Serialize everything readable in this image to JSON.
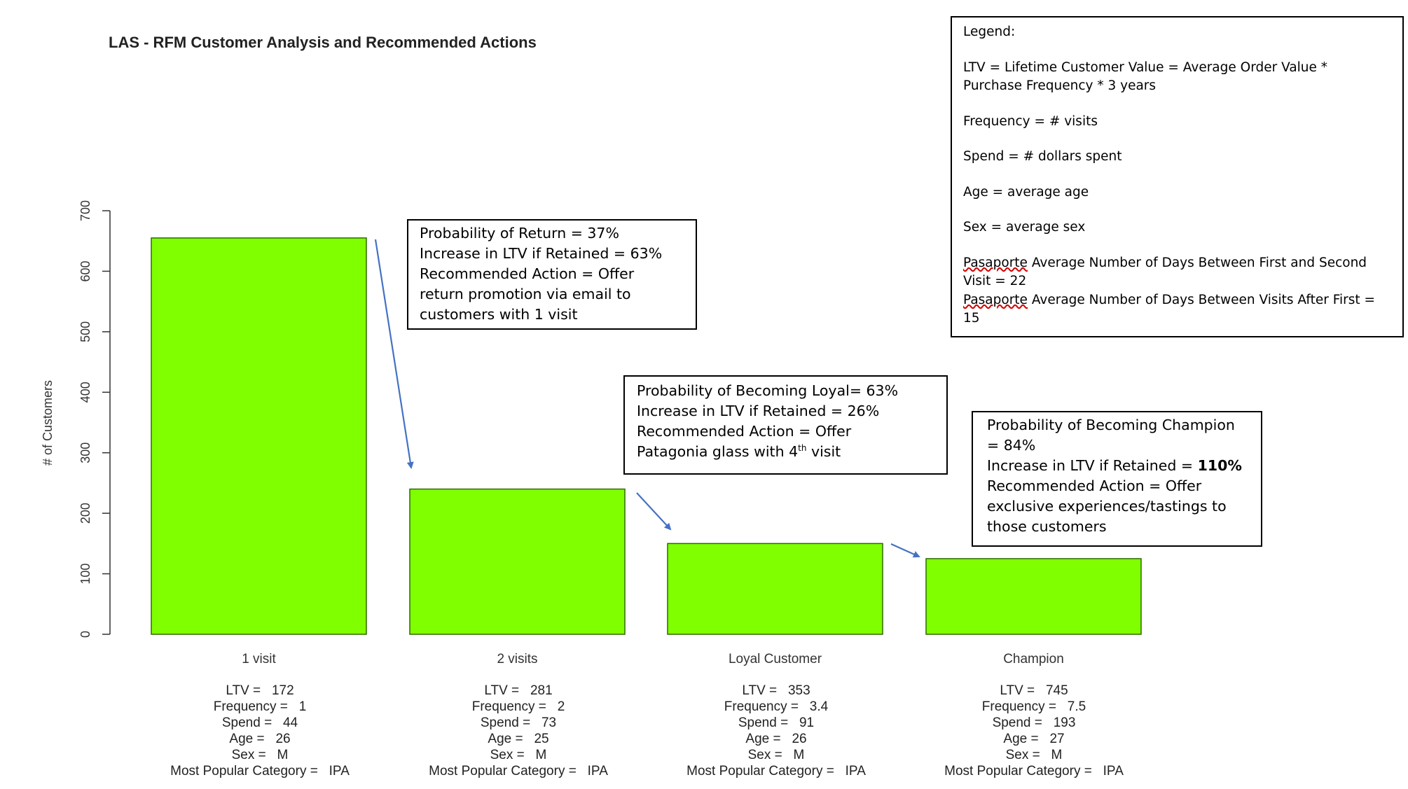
{
  "chart_data": {
    "type": "bar",
    "title": "LAS - RFM Customer Analysis and Recommended Actions",
    "ylabel": "# of Customers",
    "ylim": [
      0,
      700
    ],
    "yticks": [
      0,
      100,
      200,
      300,
      400,
      500,
      600,
      700
    ],
    "categories": [
      "1 visit",
      "2 visits",
      "Loyal Customer",
      "Champion"
    ],
    "values": [
      655,
      240,
      150,
      125
    ],
    "bar_color": "#80FF00",
    "bar_stroke": "#2d6a00",
    "arrow_color": "#4472C4",
    "grid": false,
    "category_stats": [
      [
        "LTV =   172",
        "Frequency =   1",
        "Spend =   44",
        "Age =   26",
        "Sex =   M",
        "Most Popular Category =   IPA"
      ],
      [
        "LTV =   281",
        "Frequency =   2",
        "Spend =   73",
        "Age =   25",
        "Sex =   M",
        "Most Popular Category =   IPA"
      ],
      [
        "LTV =   353",
        "Frequency =   3.4",
        "Spend =   91",
        "Age =   26",
        "Sex =   M",
        "Most Popular Category =   IPA"
      ],
      [
        "LTV =   745",
        "Frequency =   7.5",
        "Spend =   193",
        "Age =   27",
        "Sex =   M",
        "Most Popular Category =   IPA"
      ]
    ]
  },
  "annotations": {
    "return_box": [
      "Probability of Return = 37%",
      "Increase in LTV if Retained = 63%",
      "Recommended Action = Offer",
      "return promotion via email to",
      "customers with 1 visit"
    ],
    "loyal_box": {
      "line1": "Probability of Becoming Loyal= 63%",
      "line2": "Increase in LTV if Retained = 26%",
      "line3": "Recommended Action = Offer",
      "line4_pre": "Patagonia glass with 4",
      "line4_sup": "th",
      "line4_post": " visit"
    },
    "champion_box": {
      "line1": "Probability of Becoming Champion",
      "line2": "= 84%",
      "line3_pre": "Increase in LTV if Retained = ",
      "line3_bold": "110%",
      "line4": "Recommended Action = Offer",
      "line5": "exclusive experiences/tastings to",
      "line6": "those customers"
    }
  },
  "legend": {
    "heading": "Legend:",
    "ltv_line1": "LTV = Lifetime Customer Value = Average Order Value *",
    "ltv_line2": "Purchase Frequency * 3 years",
    "frequency": "Frequency = # visits",
    "spend": "Spend = # dollars spent",
    "age": "Age = average age",
    "sex": "Sex = average sex",
    "pasaporte_word": "Pasaporte",
    "first_second_rest": " Average Number of Days Between First and Second",
    "first_second_value": "Visit = 22",
    "after_first_rest": " Average Number of Days Between Visits After First =",
    "after_first_value": "15"
  }
}
